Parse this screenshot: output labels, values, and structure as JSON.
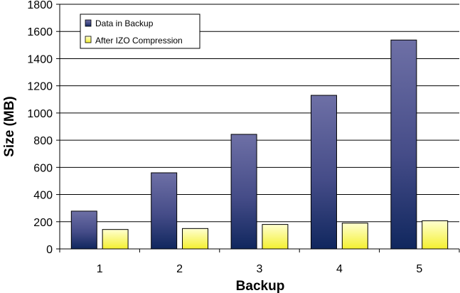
{
  "chart_data": {
    "type": "bar",
    "title": "",
    "xlabel": "Backup",
    "ylabel": "Size (MB)",
    "categories": [
      "1",
      "2",
      "3",
      "4",
      "5"
    ],
    "ylim": [
      0,
      1800
    ],
    "yticks": [
      0,
      200,
      400,
      600,
      800,
      1000,
      1200,
      1400,
      1600,
      1800
    ],
    "grid": true,
    "legend_position": "top-left",
    "series": [
      {
        "name": "Data in Backup",
        "values": [
          278,
          560,
          843,
          1130,
          1537
        ],
        "color": "#3a4a86"
      },
      {
        "name": "After IZO Compression",
        "values": [
          143,
          150,
          180,
          190,
          207
        ],
        "color": "#ffff80"
      }
    ]
  }
}
